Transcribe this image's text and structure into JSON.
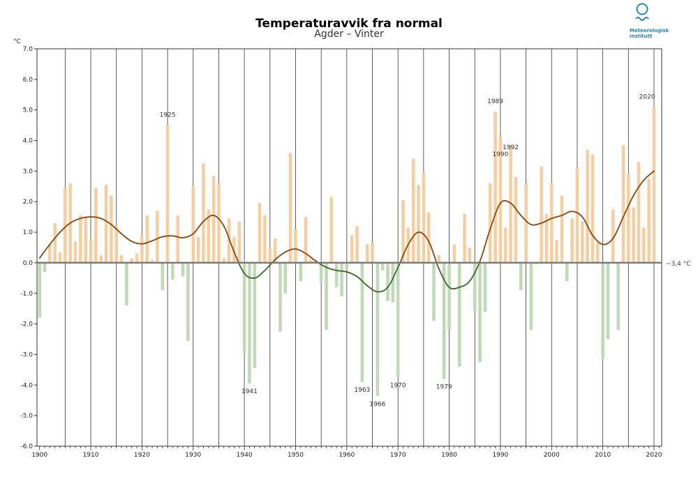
{
  "header": {
    "title": "Temperaturavvik fra normal",
    "subtitle": "Agder – Vinter"
  },
  "logo": {
    "text": "Meteorologisk\ninstitutt"
  },
  "colors": {
    "positive_bar": "#f5cfa4",
    "negative_bar": "#c2d9b8",
    "curve_positive": "#8b4a12",
    "curve_negative": "#3f6a2c",
    "zero_line": "#7a7a7a",
    "grid": "#333333",
    "logo": "#2a86b8"
  },
  "chart_data": {
    "type": "bar",
    "title": "Temperaturavvik fra normal",
    "subtitle": "Agder – Vinter",
    "ylabel": "°C",
    "ylim": [
      -6,
      7
    ],
    "xlim": [
      1899.5,
      2021.5
    ],
    "y_ticks": [
      "-6.0",
      "-5.0",
      "-4.0",
      "-3.0",
      "-2.0",
      "-1.0",
      "0.0",
      "1.0",
      "2.0",
      "3.0",
      "4.0",
      "5.0",
      "6.0",
      "7.0"
    ],
    "x_ticks": [
      "1900",
      "1910",
      "1920",
      "1930",
      "1940",
      "1950",
      "1960",
      "1970",
      "1980",
      "1990",
      "2000",
      "2010",
      "2020"
    ],
    "normal_label": "−3,4 °C",
    "years": [
      1900,
      1901,
      1902,
      1903,
      1904,
      1905,
      1906,
      1907,
      1908,
      1909,
      1910,
      1911,
      1912,
      1913,
      1914,
      1915,
      1916,
      1917,
      1918,
      1919,
      1920,
      1921,
      1922,
      1923,
      1924,
      1925,
      1926,
      1927,
      1928,
      1929,
      1930,
      1931,
      1932,
      1933,
      1934,
      1935,
      1936,
      1937,
      1938,
      1939,
      1940,
      1941,
      1942,
      1943,
      1944,
      1945,
      1946,
      1947,
      1948,
      1949,
      1950,
      1951,
      1952,
      1953,
      1954,
      1955,
      1956,
      1957,
      1958,
      1959,
      1960,
      1961,
      1962,
      1963,
      1964,
      1965,
      1966,
      1967,
      1968,
      1969,
      1970,
      1971,
      1972,
      1973,
      1974,
      1975,
      1976,
      1977,
      1978,
      1979,
      1980,
      1981,
      1982,
      1983,
      1984,
      1985,
      1986,
      1987,
      1988,
      1989,
      1990,
      1991,
      1992,
      1993,
      1994,
      1995,
      1996,
      1997,
      1998,
      1999,
      2000,
      2001,
      2002,
      2003,
      2004,
      2005,
      2006,
      2007,
      2008,
      2009,
      2010,
      2011,
      2012,
      2013,
      2014,
      2015,
      2016,
      2017,
      2018,
      2019,
      2020
    ],
    "values": [
      -1.8,
      -0.3,
      0.6,
      1.3,
      0.35,
      2.45,
      2.6,
      0.7,
      1.55,
      1.5,
      0.75,
      2.45,
      0.25,
      2.55,
      2.2,
      1.2,
      0.25,
      -1.4,
      0.15,
      0.3,
      0.9,
      1.55,
      0.1,
      1.7,
      -0.9,
      4.5,
      -0.55,
      1.55,
      -0.45,
      -2.55,
      2.5,
      0.85,
      3.25,
      1.75,
      2.85,
      2.6,
      0.15,
      1.45,
      0.85,
      1.35,
      -2.95,
      -3.95,
      -3.45,
      1.95,
      1.55,
      0.5,
      0.8,
      -2.25,
      -1.0,
      3.6,
      1.1,
      -0.6,
      1.5,
      0.1,
      0.0,
      -0.65,
      -2.2,
      2.15,
      -0.8,
      -1.1,
      -0.2,
      0.9,
      1.2,
      -3.9,
      0.6,
      0.65,
      -4.35,
      -0.25,
      -1.25,
      -1.3,
      -3.75,
      2.05,
      1.15,
      3.4,
      2.55,
      2.95,
      1.65,
      -1.9,
      0.25,
      -3.8,
      -2.2,
      0.6,
      -3.4,
      1.6,
      0.5,
      -1.6,
      -3.25,
      -1.6,
      2.6,
      4.95,
      4.1,
      1.15,
      3.85,
      2.8,
      -0.9,
      2.6,
      -2.2,
      -0.05,
      3.15,
      1.6,
      2.6,
      0.75,
      2.2,
      -0.6,
      1.45,
      3.1,
      1.35,
      3.7,
      3.55,
      0.65,
      -3.15,
      -2.5,
      1.75,
      -2.2,
      3.85,
      2.9,
      1.8,
      3.3,
      1.15,
      2.75,
      5.1
    ],
    "smoothed": [
      [
        1900,
        0.15
      ],
      [
        1902,
        0.6
      ],
      [
        1904,
        1.0
      ],
      [
        1906,
        1.3
      ],
      [
        1908,
        1.45
      ],
      [
        1910,
        1.5
      ],
      [
        1912,
        1.45
      ],
      [
        1914,
        1.25
      ],
      [
        1916,
        0.95
      ],
      [
        1918,
        0.7
      ],
      [
        1920,
        0.62
      ],
      [
        1922,
        0.72
      ],
      [
        1924,
        0.85
      ],
      [
        1926,
        0.88
      ],
      [
        1928,
        0.82
      ],
      [
        1930,
        0.95
      ],
      [
        1932,
        1.35
      ],
      [
        1934,
        1.55
      ],
      [
        1936,
        1.2
      ],
      [
        1938,
        0.35
      ],
      [
        1940,
        -0.35
      ],
      [
        1942,
        -0.5
      ],
      [
        1944,
        -0.25
      ],
      [
        1946,
        0.1
      ],
      [
        1948,
        0.35
      ],
      [
        1950,
        0.45
      ],
      [
        1952,
        0.3
      ],
      [
        1954,
        0.05
      ],
      [
        1956,
        -0.15
      ],
      [
        1958,
        -0.25
      ],
      [
        1960,
        -0.3
      ],
      [
        1962,
        -0.45
      ],
      [
        1964,
        -0.75
      ],
      [
        1966,
        -0.95
      ],
      [
        1968,
        -0.8
      ],
      [
        1970,
        -0.15
      ],
      [
        1972,
        0.6
      ],
      [
        1974,
        1.0
      ],
      [
        1976,
        0.7
      ],
      [
        1978,
        -0.2
      ],
      [
        1980,
        -0.8
      ],
      [
        1982,
        -0.8
      ],
      [
        1984,
        -0.6
      ],
      [
        1986,
        0.05
      ],
      [
        1988,
        1.1
      ],
      [
        1990,
        1.95
      ],
      [
        1992,
        1.95
      ],
      [
        1994,
        1.55
      ],
      [
        1996,
        1.25
      ],
      [
        1998,
        1.3
      ],
      [
        2000,
        1.45
      ],
      [
        2002,
        1.55
      ],
      [
        2004,
        1.68
      ],
      [
        2006,
        1.5
      ],
      [
        2008,
        0.9
      ],
      [
        2010,
        0.6
      ],
      [
        2012,
        0.8
      ],
      [
        2014,
        1.5
      ],
      [
        2016,
        2.2
      ],
      [
        2018,
        2.7
      ],
      [
        2020,
        3.0
      ]
    ],
    "annotations": [
      {
        "year": 1925,
        "label": "1925",
        "side": "above"
      },
      {
        "year": 1941,
        "label": "1941",
        "side": "below"
      },
      {
        "year": 1963,
        "label": "1963",
        "side": "below"
      },
      {
        "year": 1966,
        "label": "1966",
        "side": "below"
      },
      {
        "year": 1970,
        "label": "1970",
        "side": "below"
      },
      {
        "year": 1979,
        "label": "1979",
        "side": "below"
      },
      {
        "year": 1989,
        "label": "1989",
        "side": "above"
      },
      {
        "year": 1990,
        "label": "1990",
        "side": "above"
      },
      {
        "year": 1992,
        "label": "1992",
        "side": "above"
      },
      {
        "year": 2020,
        "label": "2020",
        "side": "above"
      }
    ]
  }
}
